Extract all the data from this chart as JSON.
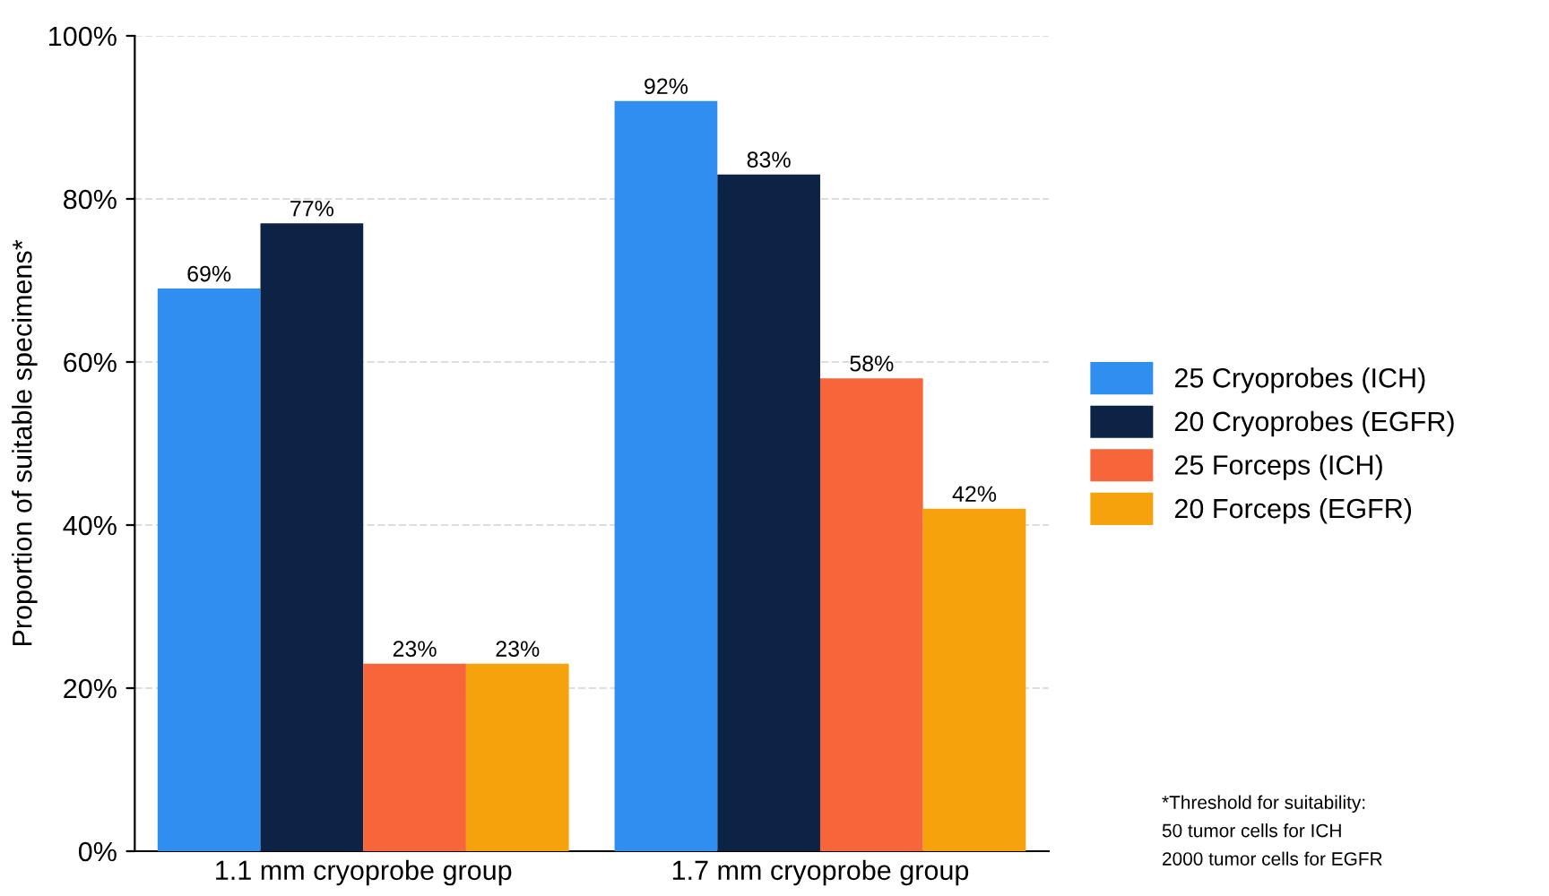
{
  "chart_data": {
    "type": "bar",
    "ylabel": "Proportion of suitable specimens*",
    "categories": [
      "1.1 mm cryoprobe group",
      "1.7 mm cryoprobe group"
    ],
    "series": [
      {
        "name": "25 Cryoprobes (ICH)",
        "color": "#2f8ef0",
        "values": [
          69,
          92
        ],
        "value_labels": [
          "69%",
          "92%"
        ]
      },
      {
        "name": "20 Cryoprobes (EGFR)",
        "color": "#0c2346",
        "values": [
          77,
          83
        ],
        "value_labels": [
          "77%",
          "83%"
        ]
      },
      {
        "name": "25 Forceps (ICH)",
        "color": "#f7663a",
        "values": [
          23,
          58
        ],
        "value_labels": [
          "23%",
          "58%"
        ]
      },
      {
        "name": "20 Forceps (EGFR)",
        "color": "#f6a20c",
        "values": [
          23,
          42
        ],
        "value_labels": [
          "23%",
          "42%"
        ]
      }
    ],
    "ylim": [
      0,
      100
    ],
    "yticks": [
      {
        "value": 0,
        "label": "0%"
      },
      {
        "value": 20,
        "label": "20%"
      },
      {
        "value": 40,
        "label": "40%"
      },
      {
        "value": 60,
        "label": "60%"
      },
      {
        "value": 80,
        "label": "80%"
      },
      {
        "value": 100,
        "label": "100%"
      }
    ],
    "grid": "y",
    "legend": "right",
    "annotations": [
      "*Threshold for suitability:\n50 tumor cells for ICH\n2000 tumor cells for EGFR"
    ]
  }
}
